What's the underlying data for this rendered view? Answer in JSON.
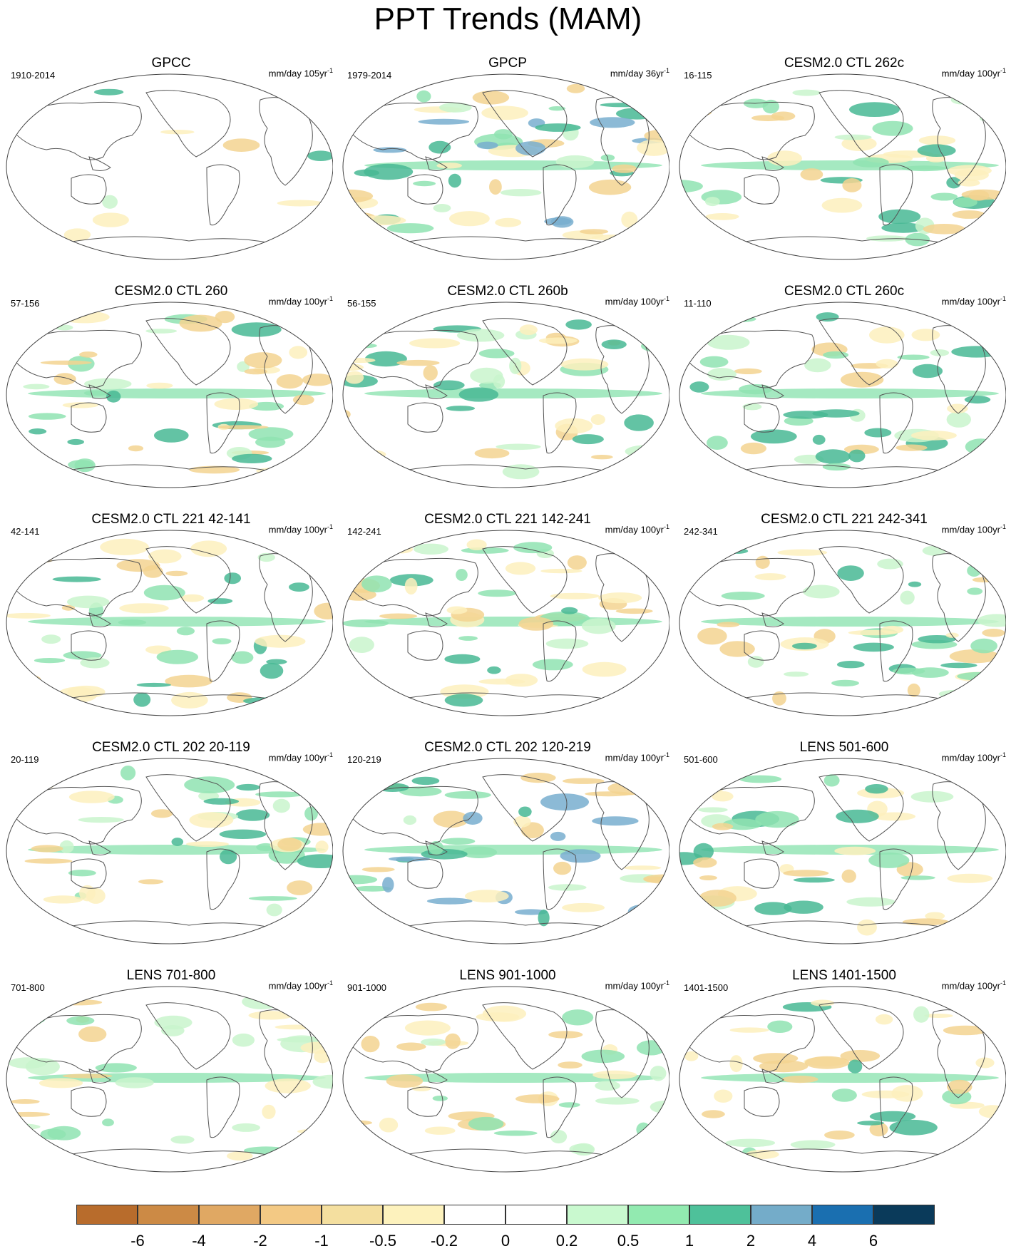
{
  "title": "PPT Trends (MAM)",
  "panels": [
    {
      "title": "GPCC",
      "period": "1910-2014",
      "units": "mm/day 105yr",
      "units_sup": "-1",
      "palette": [
        "#f3d491",
        "#fdf0bd",
        "#c9f5cd",
        "#8fe3b2",
        "#48b994"
      ],
      "spots": 8
    },
    {
      "title": "GPCP",
      "period": "1979-2014",
      "units": "mm/day 36yr",
      "units_sup": "-1",
      "palette": [
        "#f3d491",
        "#fdf0bd",
        "#c9f5cd",
        "#8fe3b2",
        "#48b994",
        "#78aecf"
      ],
      "spots": 55
    },
    {
      "title": "CESM2.0 CTL 262c",
      "period": "16-115",
      "units": "mm/day 100yr",
      "units_sup": "-1",
      "palette": [
        "#f3d491",
        "#fdf0bd",
        "#c9f5cd",
        "#8fe3b2",
        "#48b994"
      ],
      "spots": 45
    },
    {
      "title": "CESM2.0 CTL 260",
      "period": "57-156",
      "units": "mm/day 100yr",
      "units_sup": "-1",
      "palette": [
        "#f3d491",
        "#fdf0bd",
        "#c9f5cd",
        "#8fe3b2",
        "#48b994"
      ],
      "spots": 45
    },
    {
      "title": "CESM2.0 CTL 260b",
      "period": "56-155",
      "units": "mm/day 100yr",
      "units_sup": "-1",
      "palette": [
        "#f3d491",
        "#fdf0bd",
        "#c9f5cd",
        "#8fe3b2",
        "#48b994"
      ],
      "spots": 45
    },
    {
      "title": "CESM2.0 CTL 260c",
      "period": "11-110",
      "units": "mm/day 100yr",
      "units_sup": "-1",
      "palette": [
        "#f3d491",
        "#fdf0bd",
        "#c9f5cd",
        "#8fe3b2",
        "#48b994"
      ],
      "spots": 45
    },
    {
      "title": "CESM2.0 CTL 221 42-141",
      "period": "42-141",
      "units": "mm/day 100yr",
      "units_sup": "-1",
      "palette": [
        "#f3d491",
        "#fdf0bd",
        "#c9f5cd",
        "#8fe3b2",
        "#48b994"
      ],
      "spots": 45
    },
    {
      "title": "CESM2.0 CTL 221 142-241",
      "period": "142-241",
      "units": "mm/day 100yr",
      "units_sup": "-1",
      "palette": [
        "#f3d491",
        "#fdf0bd",
        "#c9f5cd",
        "#8fe3b2",
        "#48b994"
      ],
      "spots": 45
    },
    {
      "title": "CESM2.0 CTL 221 242-341",
      "period": "242-341",
      "units": "mm/day 100yr",
      "units_sup": "-1",
      "palette": [
        "#f3d491",
        "#fdf0bd",
        "#c9f5cd",
        "#8fe3b2",
        "#48b994"
      ],
      "spots": 45
    },
    {
      "title": "CESM2.0 CTL 202 20-119",
      "period": "20-119",
      "units": "mm/day 100yr",
      "units_sup": "-1",
      "palette": [
        "#f3d491",
        "#fdf0bd",
        "#c9f5cd",
        "#8fe3b2",
        "#48b994"
      ],
      "spots": 45
    },
    {
      "title": "CESM2.0 CTL 202 120-219",
      "period": "120-219",
      "units": "mm/day 100yr",
      "units_sup": "-1",
      "palette": [
        "#f3d491",
        "#fdf0bd",
        "#c9f5cd",
        "#8fe3b2",
        "#48b994",
        "#78aecf"
      ],
      "spots": 45
    },
    {
      "title": "LENS 501-600",
      "period": "501-600",
      "units": "mm/day 100yr",
      "units_sup": "-1",
      "palette": [
        "#f3d491",
        "#fdf0bd",
        "#c9f5cd",
        "#8fe3b2",
        "#48b994"
      ],
      "spots": 45
    },
    {
      "title": "LENS 701-800",
      "period": "701-800",
      "units": "mm/day 100yr",
      "units_sup": "-1",
      "palette": [
        "#f3d491",
        "#fdf0bd",
        "#c9f5cd",
        "#8fe3b2"
      ],
      "spots": 40
    },
    {
      "title": "LENS 901-1000",
      "period": "901-1000",
      "units": "mm/day 100yr",
      "units_sup": "-1",
      "palette": [
        "#f3d491",
        "#fdf0bd",
        "#c9f5cd",
        "#8fe3b2"
      ],
      "spots": 40
    },
    {
      "title": "LENS 1401-1500",
      "period": "1401-1500",
      "units": "mm/day 100yr",
      "units_sup": "-1",
      "palette": [
        "#f3d491",
        "#fdf0bd",
        "#c9f5cd",
        "#8fe3b2",
        "#48b994"
      ],
      "spots": 40
    }
  ],
  "colorbar": {
    "colors": [
      "#b86c2c",
      "#cc8a45",
      "#e0a863",
      "#f3c984",
      "#f4df9f",
      "#fdf2bd",
      "#ffffff",
      "#ffffff",
      "#c9f9cf",
      "#92eab0",
      "#4ec19a",
      "#74acc9",
      "#1a6fb0",
      "#0a3a5a"
    ],
    "ticks": [
      "-6",
      "-4",
      "-2",
      "-1",
      "-0.5",
      "-0.2",
      "0",
      "0.2",
      "0.5",
      "1",
      "2",
      "4",
      "6"
    ]
  }
}
